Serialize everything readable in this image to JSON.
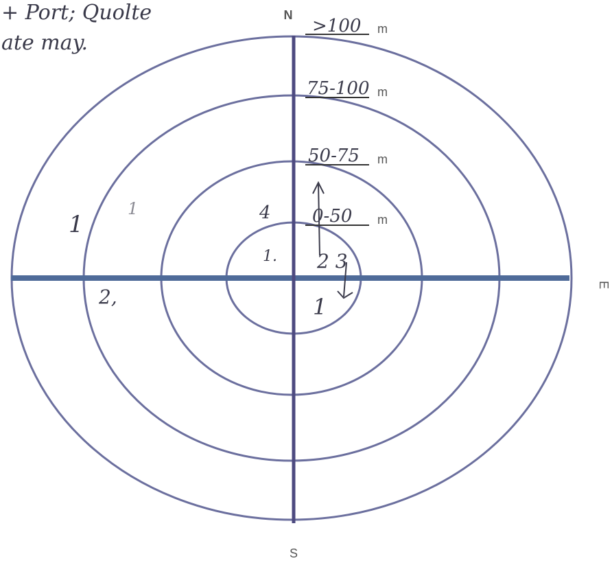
{
  "notes": [
    "+ Port; Quolte",
    "ate may."
  ],
  "compass": {
    "north": "N",
    "east": "E",
    "south": "S"
  },
  "rings": [
    {
      "label": ">100",
      "unit": "m"
    },
    {
      "label": "75-100",
      "unit": "m"
    },
    {
      "label": "50-75",
      "unit": "m"
    },
    {
      "label": "0-50",
      "unit": "m"
    }
  ],
  "tallies": [
    "1",
    "1",
    "4",
    "1.",
    "2 3",
    "1",
    "2,"
  ]
}
